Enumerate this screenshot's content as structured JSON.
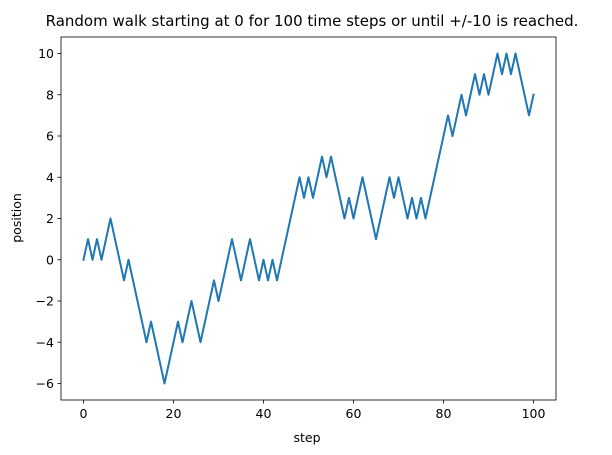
{
  "chart_data": {
    "type": "line",
    "title": "Random walk starting at 0 for 100 time steps or until +/-10 is reached.",
    "xlabel": "step",
    "ylabel": "position",
    "xlim": [
      -5,
      105
    ],
    "ylim": [
      -6.8,
      10.8
    ],
    "xticks": [
      0,
      20,
      40,
      60,
      80,
      100
    ],
    "yticks": [
      -6,
      -4,
      -2,
      0,
      2,
      4,
      6,
      8,
      10
    ],
    "grid": false,
    "series": [
      {
        "color": "#1f77b4",
        "x": [
          0,
          1,
          2,
          3,
          4,
          5,
          6,
          7,
          8,
          9,
          10,
          11,
          12,
          13,
          14,
          15,
          16,
          17,
          18,
          19,
          20,
          21,
          22,
          23,
          24,
          25,
          26,
          27,
          28,
          29,
          30,
          31,
          32,
          33,
          34,
          35,
          36,
          37,
          38,
          39,
          40,
          41,
          42,
          43,
          44,
          45,
          46,
          47,
          48,
          49,
          50,
          51,
          52,
          53,
          54,
          55,
          56,
          57,
          58,
          59,
          60,
          61,
          62,
          63,
          64,
          65,
          66,
          67,
          68,
          69,
          70,
          71,
          72,
          73,
          74,
          75,
          76,
          77,
          78,
          79,
          80,
          81,
          82,
          83,
          84,
          85,
          86,
          87,
          88,
          89,
          90,
          91,
          92,
          93,
          94,
          95,
          96,
          97,
          98,
          99,
          100
        ],
        "values": [
          0,
          1,
          0,
          1,
          0,
          1,
          2,
          1,
          0,
          -1,
          0,
          -1,
          -2,
          -3,
          -4,
          -3,
          -4,
          -5,
          -6,
          -5,
          -4,
          -3,
          -4,
          -3,
          -2,
          -3,
          -4,
          -3,
          -2,
          -1,
          -2,
          -1,
          0,
          1,
          0,
          -1,
          0,
          1,
          0,
          -1,
          0,
          -1,
          0,
          -1,
          0,
          1,
          2,
          3,
          4,
          3,
          4,
          3,
          4,
          5,
          4,
          5,
          4,
          3,
          2,
          3,
          2,
          3,
          4,
          3,
          2,
          1,
          2,
          3,
          4,
          3,
          4,
          3,
          2,
          3,
          2,
          3,
          2,
          3,
          4,
          5,
          6,
          7,
          6,
          7,
          8,
          7,
          8,
          9,
          8,
          9,
          8,
          9,
          10,
          9,
          10,
          9,
          10,
          9,
          8,
          7,
          8
        ]
      }
    ]
  }
}
